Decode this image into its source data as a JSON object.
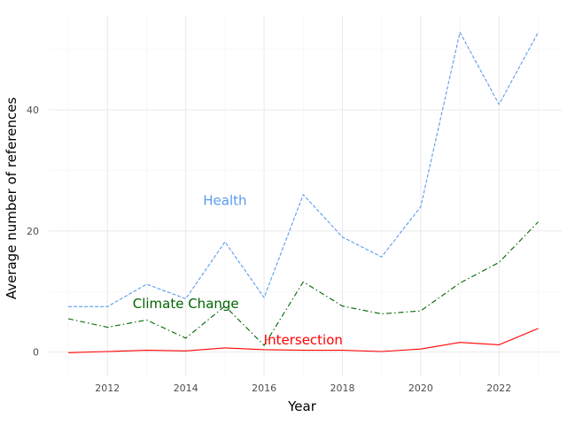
{
  "chart_data": {
    "type": "line",
    "xlabel": "Year",
    "ylabel": "Average number of references",
    "xlim": [
      2010.5,
      2023.6
    ],
    "ylim": [
      -4,
      55.5
    ],
    "x_ticks": [
      2012,
      2014,
      2016,
      2018,
      2020,
      2022
    ],
    "x_tick_labels": [
      "2012",
      "2014",
      "2016",
      "2018",
      "2020",
      "2022"
    ],
    "y_ticks": [
      0,
      20,
      40
    ],
    "y_tick_labels": [
      "0",
      "20",
      "40"
    ],
    "grid": true,
    "legend": "none",
    "x": [
      2011,
      2012,
      2013,
      2014,
      2015,
      2016,
      2017,
      2018,
      2019,
      2020,
      2021,
      2022,
      2023
    ],
    "series": [
      {
        "name": "Health",
        "color": "#5b9bf0",
        "line_style": "dashed",
        "values": [
          7.5,
          7.5,
          11.2,
          8.8,
          18.2,
          9.0,
          26.0,
          19.0,
          15.7,
          24.0,
          52.8,
          40.9,
          52.8
        ],
        "label_at": [
          2015.0,
          25.0
        ]
      },
      {
        "name": "Climate Change",
        "color": "#006400",
        "line_style": "dashdot",
        "values": [
          5.5,
          4.1,
          5.3,
          2.3,
          7.6,
          1.1,
          11.6,
          7.6,
          6.3,
          6.8,
          11.4,
          14.8,
          21.5
        ],
        "label_at": [
          2014.0,
          8.0
        ]
      },
      {
        "name": "Intersection",
        "color": "#ff0000",
        "line_style": "solid",
        "values": [
          -0.1,
          0.1,
          0.3,
          0.2,
          0.7,
          0.4,
          0.3,
          0.3,
          0.1,
          0.5,
          1.6,
          1.2,
          3.9
        ],
        "label_at": [
          2017.0,
          2.0
        ]
      }
    ]
  }
}
